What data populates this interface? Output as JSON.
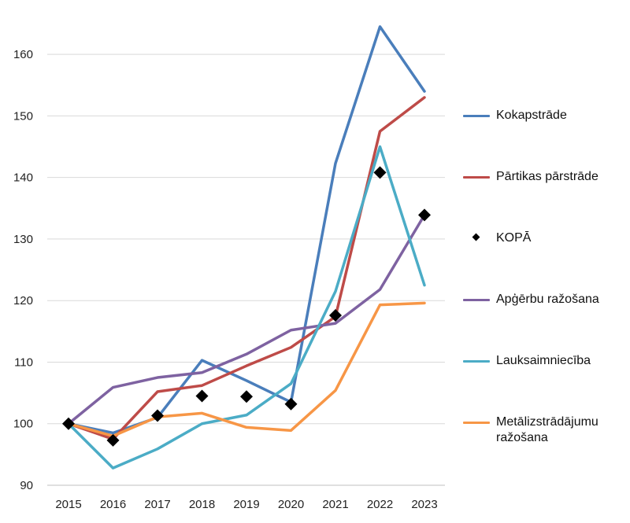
{
  "chart_data": {
    "type": "line",
    "title": "",
    "xlabel": "",
    "ylabel": "",
    "categories": [
      "2015",
      "2016",
      "2017",
      "2018",
      "2019",
      "2020",
      "2021",
      "2022",
      "2023"
    ],
    "ylim": [
      90,
      165
    ],
    "yticks": [
      90,
      100,
      110,
      120,
      130,
      140,
      150,
      160
    ],
    "grid": true,
    "legend_position": "right",
    "series": [
      {
        "name": "Kokapstrāde",
        "color": "#4A7EBB",
        "style": "line",
        "values": [
          100,
          98.5,
          101,
          110.3,
          107,
          103.5,
          142.3,
          164.5,
          154
        ]
      },
      {
        "name": "Pārtikas pārstrāde",
        "color": "#BE4B48",
        "style": "line",
        "values": [
          100,
          97.5,
          105.2,
          106.2,
          109.4,
          112.4,
          117.4,
          147.5,
          153
        ]
      },
      {
        "name": "KOPĀ",
        "color": "#000000",
        "style": "marker",
        "values": [
          100,
          97.3,
          101.3,
          104.5,
          104.4,
          103.2,
          117.6,
          140.8,
          133.9
        ]
      },
      {
        "name": "Apģērbu ražošana",
        "color": "#7E62A1",
        "style": "line",
        "values": [
          100,
          105.9,
          107.5,
          108.3,
          111.3,
          115.2,
          116.3,
          121.8,
          133.9
        ]
      },
      {
        "name": "Lauksaimniecība",
        "color": "#4BACC6",
        "style": "line",
        "values": [
          100,
          92.8,
          95.9,
          100,
          101.4,
          106.5,
          121.5,
          145,
          122.5
        ]
      },
      {
        "name": "Metālizstrādājumu ražošana",
        "color": "#F79646",
        "style": "line",
        "values": [
          100,
          98,
          101.1,
          101.7,
          99.4,
          98.9,
          105.4,
          119.3,
          119.6
        ]
      }
    ]
  },
  "legend": [
    {
      "label": "Kokapstrāde",
      "color": "#4A7EBB",
      "kind": "line"
    },
    {
      "label": "Pārtikas pārstrāde",
      "color": "#BE4B48",
      "kind": "line"
    },
    {
      "label": "KOPĀ",
      "color": "#000000",
      "kind": "marker"
    },
    {
      "label": "Apģērbu ražošana",
      "color": "#7E62A1",
      "kind": "line"
    },
    {
      "label": "Lauksaimniecība",
      "color": "#4BACC6",
      "kind": "line"
    },
    {
      "label": "Metālizstrādājumu ražošana",
      "color": "#F79646",
      "kind": "line"
    }
  ]
}
